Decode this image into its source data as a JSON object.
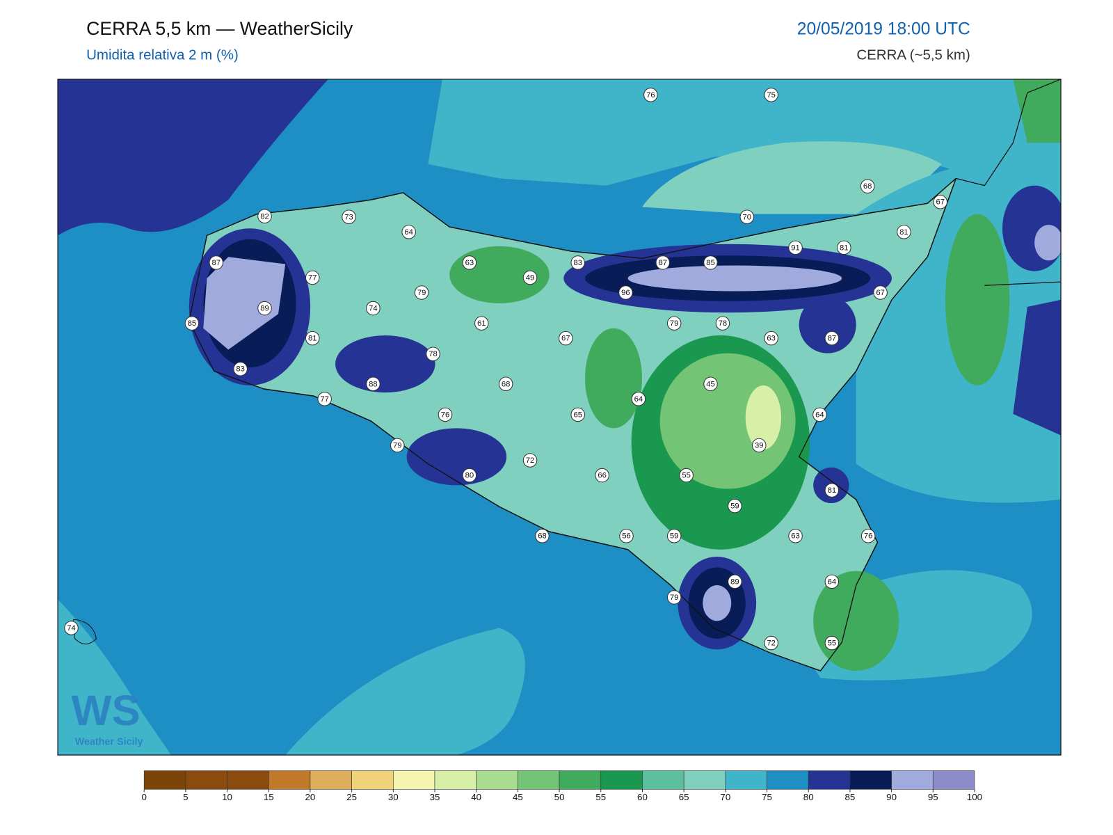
{
  "header": {
    "title": "CERRA 5,5 km — WeatherSicily",
    "subtitle": "Umidita relativa 2 m (%)",
    "datetime": "20/05/2019 18:00 UTC",
    "model": "CERRA (~5,5 km)"
  },
  "stations": [
    76,
    75,
    68,
    67,
    70,
    81,
    82,
    73,
    64,
    91,
    81,
    87,
    63,
    83,
    87,
    85,
    77,
    49,
    79,
    96,
    67,
    89,
    74,
    85,
    61,
    79,
    78,
    81,
    67,
    63,
    87,
    78,
    83,
    88,
    68,
    45,
    77,
    64,
    76,
    65,
    64,
    79,
    39,
    72,
    80,
    66,
    55,
    81,
    59,
    68,
    56,
    59,
    63,
    76,
    89,
    64,
    79,
    74,
    72,
    55
  ],
  "logo": {
    "mark": "WS",
    "name": "Weather Sicily"
  },
  "colorbar": {
    "ticks": [
      0,
      5,
      10,
      15,
      20,
      25,
      30,
      35,
      40,
      45,
      50,
      55,
      60,
      65,
      70,
      75,
      80,
      85,
      90,
      95,
      100
    ],
    "colors": [
      "#7a4506",
      "#8b4a0e",
      "#8b4a0e",
      "#c07a2a",
      "#dfae5a",
      "#f0d27a",
      "#f5f5b0",
      "#d8efa8",
      "#a8dc90",
      "#74c476",
      "#41ab5d",
      "#1a9850",
      "#5cc0a0",
      "#80d0c0",
      "#40b4c8",
      "#1e8fc4",
      "#253494",
      "#081d58",
      "#a0aadc",
      "#8c8cc8"
    ]
  }
}
